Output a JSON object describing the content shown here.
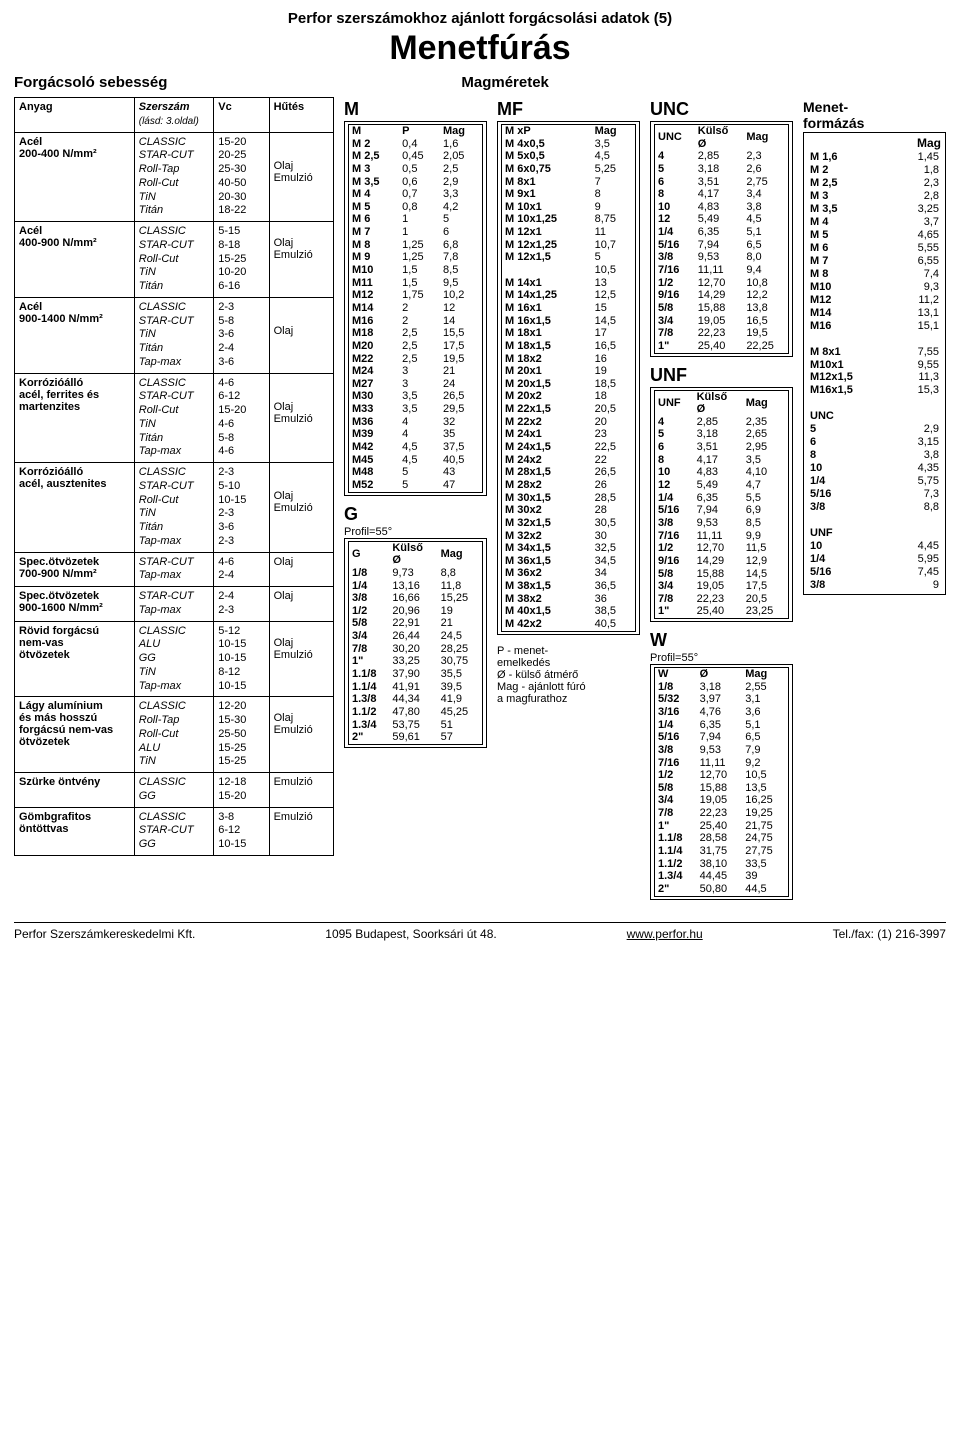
{
  "header": {
    "topline": "Perfor szerszámokhoz ajánlott forgácsolási adatok (5)",
    "title": "Menetfúrás",
    "sub_left": "Forgácsoló sebesség",
    "sub_right": "Magméretek"
  },
  "main_table": {
    "head": {
      "c1": "Anyag",
      "c2": "Szerszám",
      "c2sub": "(lásd: 3.oldal)",
      "c3": "Vc",
      "c4": "Hűtés"
    },
    "rows": [
      {
        "anyag": "Acél\n200-400 N/mm²",
        "tools": "CLASSIC\nSTAR-CUT\nRoll-Tap\nRoll-Cut\nTiN\nTitán",
        "vc": "15-20\n20-25\n25-30\n40-50\n20-30\n18-22",
        "hutes": "\n\nOlaj\nEmulzió"
      },
      {
        "anyag": "Acél\n400-900 N/mm²",
        "tools": "CLASSIC\nSTAR-CUT\nRoll-Cut\nTiN\nTitán",
        "vc": "5-15\n8-18\n15-25\n10-20\n6-16",
        "hutes": "\nOlaj\nEmulzió"
      },
      {
        "anyag": "Acél\n900-1400 N/mm²",
        "tools": "CLASSIC\nSTAR-CUT\nTiN\nTitán\nTap-max",
        "vc": "2-3\n5-8\n3-6\n2-4\n3-6",
        "hutes": "\n\nOlaj"
      },
      {
        "anyag": "Korrózióálló\nacél, ferrites és\nmartenzites",
        "tools": "CLASSIC\nSTAR-CUT\nRoll-Cut\nTiN\nTitán\nTap-max",
        "vc": "4-6\n6-12\n15-20\n4-6\n5-8\n4-6",
        "hutes": "\n\nOlaj\nEmulzió"
      },
      {
        "anyag": "Korrózióálló\nacél, ausztenites",
        "tools": "CLASSIC\nSTAR-CUT\nRoll-Cut\nTiN\nTitán\nTap-max",
        "vc": "2-3\n5-10\n10-15\n2-3\n3-6\n2-3",
        "hutes": "\n\nOlaj\nEmulzió"
      },
      {
        "anyag": "Spec.ötvözetek\n700-900 N/mm²",
        "tools": "STAR-CUT\nTap-max",
        "vc": "4-6\n2-4",
        "hutes": "Olaj"
      },
      {
        "anyag": "Spec.ötvözetek\n900-1600 N/mm²",
        "tools": "STAR-CUT\nTap-max",
        "vc": "2-4\n2-3",
        "hutes": "Olaj"
      },
      {
        "anyag": "Rövid forgácsú\nnem-vas\nötvözetek",
        "tools": "CLASSIC\nALU\nGG\nTiN\nTap-max",
        "vc": "5-12\n10-15\n10-15\n8-12\n10-15",
        "hutes": "\nOlaj\nEmulzió"
      },
      {
        "anyag": "Lágy alumínium\nés más hosszú\nforgácsú nem-vas\nötvözetek",
        "tools": "CLASSIC\nRoll-Tap\nRoll-Cut\nALU\nTiN",
        "vc": "12-20\n15-30\n25-50\n15-25\n15-25",
        "hutes": "\nOlaj\nEmulzió"
      },
      {
        "anyag": "Szürke öntvény",
        "tools": "CLASSIC\nGG",
        "vc": "12-18\n15-20",
        "hutes": "Emulzió"
      },
      {
        "anyag": "Gömbgrafitos\nöntöttvas",
        "tools": "CLASSIC\nSTAR-CUT\nGG",
        "vc": "3-8\n6-12\n10-15",
        "hutes": "Emulzió"
      }
    ]
  },
  "m_table": {
    "title": "M",
    "head": [
      "M",
      "P",
      "Mag"
    ],
    "rows": [
      [
        "M 2",
        "0,4",
        "1,6"
      ],
      [
        "M 2,5",
        "0,45",
        "2,05"
      ],
      [
        "M 3",
        "0,5",
        "2,5"
      ],
      [
        "M 3,5",
        "0,6",
        "2,9"
      ],
      [
        "M 4",
        "0,7",
        "3,3"
      ],
      [
        "M 5",
        "0,8",
        "4,2"
      ],
      [
        "M 6",
        "1",
        "5"
      ],
      [
        "M 7",
        "1",
        "6"
      ],
      [
        "M 8",
        "1,25",
        "6,8"
      ],
      [
        "M 9",
        "1,25",
        "7,8"
      ],
      [
        "M10",
        "1,5",
        "8,5"
      ],
      [
        "M11",
        "1,5",
        "9,5"
      ],
      [
        "M12",
        "1,75",
        "10,2"
      ],
      [
        "M14",
        "2",
        "12"
      ],
      [
        "M16",
        "2",
        "14"
      ],
      [
        "M18",
        "2,5",
        "15,5"
      ],
      [
        "M20",
        "2,5",
        "17,5"
      ],
      [
        "M22",
        "2,5",
        "19,5"
      ],
      [
        "M24",
        "3",
        "21"
      ],
      [
        "M27",
        "3",
        "24"
      ],
      [
        "M30",
        "3,5",
        "26,5"
      ],
      [
        "M33",
        "3,5",
        "29,5"
      ],
      [
        "M36",
        "4",
        "32"
      ],
      [
        "M39",
        "4",
        "35"
      ],
      [
        "M42",
        "4,5",
        "37,5"
      ],
      [
        "M45",
        "4,5",
        "40,5"
      ],
      [
        "M48",
        "5",
        "43"
      ],
      [
        "M52",
        "5",
        "47"
      ]
    ]
  },
  "g_table": {
    "title": "G",
    "subtitle": "Profil=55°",
    "head": [
      "G",
      "Külső\nØ",
      "Mag"
    ],
    "rows": [
      [
        "1/8",
        "9,73",
        "8,8"
      ],
      [
        "1/4",
        "13,16",
        "11,8"
      ],
      [
        "3/8",
        "16,66",
        "15,25"
      ],
      [
        "1/2",
        "20,96",
        "19"
      ],
      [
        "5/8",
        "22,91",
        "21"
      ],
      [
        "3/4",
        "26,44",
        "24,5"
      ],
      [
        "7/8",
        "30,20",
        "28,25"
      ],
      [
        "1\"",
        "33,25",
        "30,75"
      ],
      [
        "1.1/8",
        "37,90",
        "35,5"
      ],
      [
        "1.1/4",
        "41,91",
        "39,5"
      ],
      [
        "1.3/8",
        "44,34",
        "41,9"
      ],
      [
        "1.1/2",
        "47,80",
        "45,25"
      ],
      [
        "1.3/4",
        "53,75",
        "51"
      ],
      [
        "2\"",
        "59,61",
        "57"
      ]
    ]
  },
  "mf_table": {
    "title": "MF",
    "head": [
      "M xP",
      "Mag"
    ],
    "rows": [
      [
        "M 4x0,5",
        "3,5"
      ],
      [
        "M 5x0,5",
        "4,5"
      ],
      [
        "M 6x0,75",
        "5,25"
      ],
      [
        "M 8x1",
        "7"
      ],
      [
        "M 9x1",
        "8"
      ],
      [
        "M 10x1",
        "9"
      ],
      [
        "M 10x1,25",
        "8,75"
      ],
      [
        "M 12x1",
        "11"
      ],
      [
        "M 12x1,25",
        "10,7"
      ],
      [
        "M 12x1,5",
        "5"
      ],
      [
        "",
        "10,5"
      ],
      [
        "M 14x1",
        "13"
      ],
      [
        "M 14x1,25",
        "12,5"
      ],
      [
        "M 16x1",
        "15"
      ],
      [
        "M 16x1,5",
        "14,5"
      ],
      [
        "M 18x1",
        "17"
      ],
      [
        "M 18x1,5",
        "16,5"
      ],
      [
        "M 18x2",
        "16"
      ],
      [
        "M 20x1",
        "19"
      ],
      [
        "M 20x1,5",
        "18,5"
      ],
      [
        "M 20x2",
        "18"
      ],
      [
        "M 22x1,5",
        "20,5"
      ],
      [
        "M 22x2",
        "20"
      ],
      [
        "M 24x1",
        "23"
      ],
      [
        "M 24x1,5",
        "22,5"
      ],
      [
        "M 24x2",
        "22"
      ],
      [
        "M 28x1,5",
        "26,5"
      ],
      [
        "M 28x2",
        "26"
      ],
      [
        "M 30x1,5",
        "28,5"
      ],
      [
        "M 30x2",
        "28"
      ],
      [
        "M 32x1,5",
        "30,5"
      ],
      [
        "M 32x2",
        "30"
      ],
      [
        "M 34x1,5",
        "32,5"
      ],
      [
        "M 36x1,5",
        "34,5"
      ],
      [
        "M 36x2",
        "34"
      ],
      [
        "M 38x1,5",
        "36,5"
      ],
      [
        "M 38x2",
        "36"
      ],
      [
        "M 40x1,5",
        "38,5"
      ],
      [
        "M 42x2",
        "40,5"
      ]
    ]
  },
  "unc_table": {
    "title": "UNC",
    "head": [
      "UNC",
      "Külső\nØ",
      "Mag"
    ],
    "rows": [
      [
        "4",
        "2,85",
        "2,3"
      ],
      [
        "5",
        "3,18",
        "2,6"
      ],
      [
        "6",
        "3,51",
        "2,75"
      ],
      [
        "8",
        "4,17",
        "3,4"
      ],
      [
        "10",
        "4,83",
        "3,8"
      ],
      [
        "12",
        "5,49",
        "4,5"
      ],
      [
        "1/4",
        "6,35",
        "5,1"
      ],
      [
        "5/16",
        "7,94",
        "6,5"
      ],
      [
        "3/8",
        "9,53",
        "8,0"
      ],
      [
        "7/16",
        "11,11",
        "9,4"
      ],
      [
        "1/2",
        "12,70",
        "10,8"
      ],
      [
        "9/16",
        "14,29",
        "12,2"
      ],
      [
        "5/8",
        "15,88",
        "13,8"
      ],
      [
        "3/4",
        "19,05",
        "16,5"
      ],
      [
        "7/8",
        "22,23",
        "19,5"
      ],
      [
        "1\"",
        "25,40",
        "22,25"
      ]
    ]
  },
  "unf_table": {
    "title": "UNF",
    "head": [
      "UNF",
      "Külső\nØ",
      "Mag"
    ],
    "rows": [
      [
        "4",
        "2,85",
        "2,35"
      ],
      [
        "5",
        "3,18",
        "2,65"
      ],
      [
        "6",
        "3,51",
        "2,95"
      ],
      [
        "8",
        "4,17",
        "3,5"
      ],
      [
        "10",
        "4,83",
        "4,10"
      ],
      [
        "12",
        "5,49",
        "4,7"
      ],
      [
        "1/4",
        "6,35",
        "5,5"
      ],
      [
        "5/16",
        "7,94",
        "6,9"
      ],
      [
        "3/8",
        "9,53",
        "8,5"
      ],
      [
        "7/16",
        "11,11",
        "9,9"
      ],
      [
        "1/2",
        "12,70",
        "11,5"
      ],
      [
        "9/16",
        "14,29",
        "12,9"
      ],
      [
        "5/8",
        "15,88",
        "14,5"
      ],
      [
        "3/4",
        "19,05",
        "17,5"
      ],
      [
        "7/8",
        "22,23",
        "20,5"
      ],
      [
        "1\"",
        "25,40",
        "23,25"
      ]
    ]
  },
  "w_table": {
    "title": "W",
    "subtitle": "Profil=55°",
    "head": [
      "W",
      "Ø",
      "Mag"
    ],
    "rows": [
      [
        "1/8",
        "3,18",
        "2,55"
      ],
      [
        "5/32",
        "3,97",
        "3,1"
      ],
      [
        "3/16",
        "4,76",
        "3,6"
      ],
      [
        "1/4",
        "6,35",
        "5,1"
      ],
      [
        "5/16",
        "7,94",
        "6,5"
      ],
      [
        "3/8",
        "9,53",
        "7,9"
      ],
      [
        "7/16",
        "11,11",
        "9,2"
      ],
      [
        "1/2",
        "12,70",
        "10,5"
      ],
      [
        "5/8",
        "15,88",
        "13,5"
      ],
      [
        "3/4",
        "19,05",
        "16,25"
      ],
      [
        "7/8",
        "22,23",
        "19,25"
      ],
      [
        "1\"",
        "25,40",
        "21,75"
      ],
      [
        "1.1/8",
        "28,58",
        "24,75"
      ],
      [
        "1.1/4",
        "31,75",
        "27,75"
      ],
      [
        "1.1/2",
        "38,10",
        "33,5"
      ],
      [
        "1.3/4",
        "44,45",
        "39"
      ],
      [
        "2\"",
        "50,80",
        "44,5"
      ]
    ]
  },
  "mt_table": {
    "title": "Menet-\nformázás",
    "head": [
      "",
      "Mag"
    ],
    "rows": [
      [
        "M 1,6",
        "1,45"
      ],
      [
        "M 2",
        "1,8"
      ],
      [
        "M 2,5",
        "2,3"
      ],
      [
        "M 3",
        "2,8"
      ],
      [
        "M 3,5",
        "3,25"
      ],
      [
        "M 4",
        "3,7"
      ],
      [
        "M 5",
        "4,65"
      ],
      [
        "M 6",
        "5,55"
      ],
      [
        "M 7",
        "6,55"
      ],
      [
        "M 8",
        "7,4"
      ],
      [
        "M10",
        "9,3"
      ],
      [
        "M12",
        "11,2"
      ],
      [
        "M14",
        "13,1"
      ],
      [
        "M16",
        "15,1"
      ],
      [
        "",
        ""
      ],
      [
        "M 8x1",
        "7,55"
      ],
      [
        "M10x1",
        "9,55"
      ],
      [
        "M12x1,5",
        "11,3"
      ],
      [
        "M16x1,5",
        "15,3"
      ],
      [
        "",
        ""
      ],
      [
        "UNC",
        ""
      ],
      [
        "5",
        "2,9"
      ],
      [
        "6",
        "3,15"
      ],
      [
        "8",
        "3,8"
      ],
      [
        "10",
        "4,35"
      ],
      [
        "1/4",
        "5,75"
      ],
      [
        "5/16",
        "7,3"
      ],
      [
        "3/8",
        "8,8"
      ],
      [
        "",
        ""
      ],
      [
        "UNF",
        ""
      ],
      [
        "10",
        "4,45"
      ],
      [
        "1/4",
        "5,95"
      ],
      [
        "5/16",
        "7,45"
      ],
      [
        "3/8",
        "9"
      ]
    ]
  },
  "note": "P - menet-\nemelkedés\nØ - külső átmérő\nMag - ajánlott fúró\na magfurathoz",
  "footer": {
    "left": "Perfor Szerszámkereskedelmi Kft.",
    "mid": "1095 Budapest, Soorksári út 48.",
    "link": "www.perfor.hu",
    "right": "Tel./fax: (1) 216-3997"
  }
}
